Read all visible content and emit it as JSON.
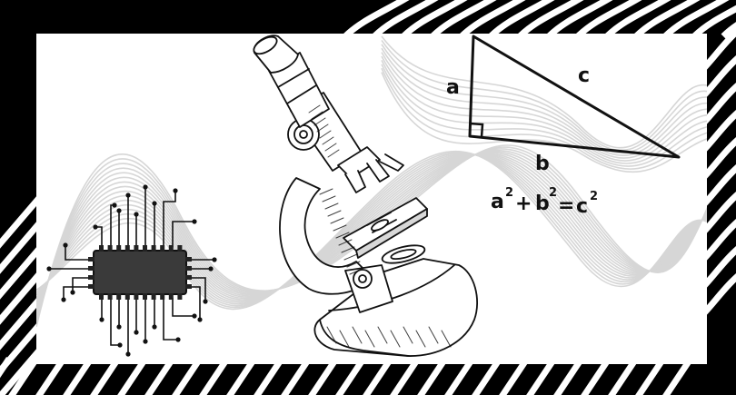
{
  "triangle": {
    "side_a": "a",
    "side_b": "b",
    "side_c": "c"
  },
  "formula": {
    "a": "a",
    "a_exp": "2",
    "plus": "+",
    "b": "b",
    "b_exp": "2",
    "equals": "=",
    "c": "c",
    "c_exp": "2"
  },
  "colors": {
    "frame": "#000000",
    "panel": "#ffffff",
    "ink": "#111111",
    "chip": "#3a3a3a",
    "wave_lines": "#d9d9d9"
  },
  "icons": [
    "microchip-icon",
    "microscope-icon",
    "right-triangle-diagram"
  ]
}
